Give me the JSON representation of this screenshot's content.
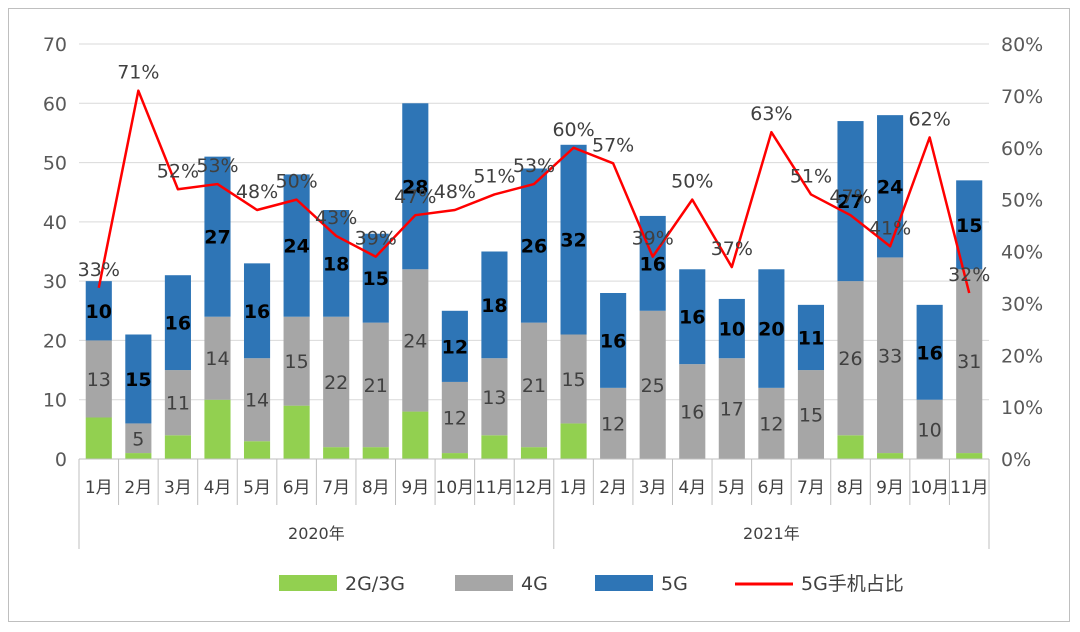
{
  "chart_data": {
    "type": "bar",
    "stacked": true,
    "groups": [
      "2020年",
      "2021年"
    ],
    "categories": [
      "1月",
      "2月",
      "3月",
      "4月",
      "5月",
      "6月",
      "7月",
      "8月",
      "9月",
      "10月",
      "11月",
      "12月",
      "1月",
      "2月",
      "3月",
      "4月",
      "5月",
      "6月",
      "7月",
      "8月",
      "9月",
      "10月",
      "11月"
    ],
    "series": [
      {
        "name": "2G/3G",
        "color": "#92d050",
        "values": [
          7,
          1,
          4,
          10,
          3,
          9,
          2,
          2,
          8,
          1,
          4,
          2,
          6,
          0,
          0,
          0,
          0,
          0,
          0,
          4,
          1,
          0,
          1
        ]
      },
      {
        "name": "4G",
        "color": "#a6a6a6",
        "values": [
          13,
          5,
          11,
          14,
          14,
          15,
          22,
          21,
          24,
          12,
          13,
          21,
          15,
          12,
          25,
          16,
          17,
          12,
          15,
          26,
          33,
          10,
          31
        ]
      },
      {
        "name": "5G",
        "color": "#2e75b6",
        "values": [
          10,
          15,
          16,
          27,
          16,
          24,
          18,
          15,
          28,
          12,
          18,
          26,
          32,
          16,
          16,
          16,
          10,
          20,
          11,
          27,
          24,
          16,
          15
        ]
      }
    ],
    "line_series": {
      "name": "5G手机占比",
      "color": "#ff0000",
      "axis": "right",
      "values": [
        33,
        71,
        52,
        53,
        48,
        50,
        43,
        39,
        47,
        48,
        51,
        53,
        60,
        57,
        39,
        50,
        37,
        63,
        51,
        47,
        41,
        62,
        32
      ],
      "labels": [
        "33%",
        "71%",
        "52%",
        "53%",
        "48%",
        "50%",
        "43%",
        "39%",
        "47%",
        "48%",
        "51%",
        "53%",
        "60%",
        "57%",
        "39%",
        "50%",
        "37%",
        "63%",
        "51%",
        "47%",
        "41%",
        "62%",
        "32%"
      ]
    },
    "y_left": {
      "min": 0,
      "max": 70,
      "ticks": [
        "0",
        "10",
        "20",
        "30",
        "40",
        "50",
        "60",
        "70"
      ]
    },
    "y_right": {
      "min": 0,
      "max": 80,
      "ticks": [
        "0%",
        "10%",
        "20%",
        "30%",
        "40%",
        "50%",
        "60%",
        "70%",
        "80%"
      ]
    },
    "grid": true,
    "legend_position": "bottom"
  }
}
